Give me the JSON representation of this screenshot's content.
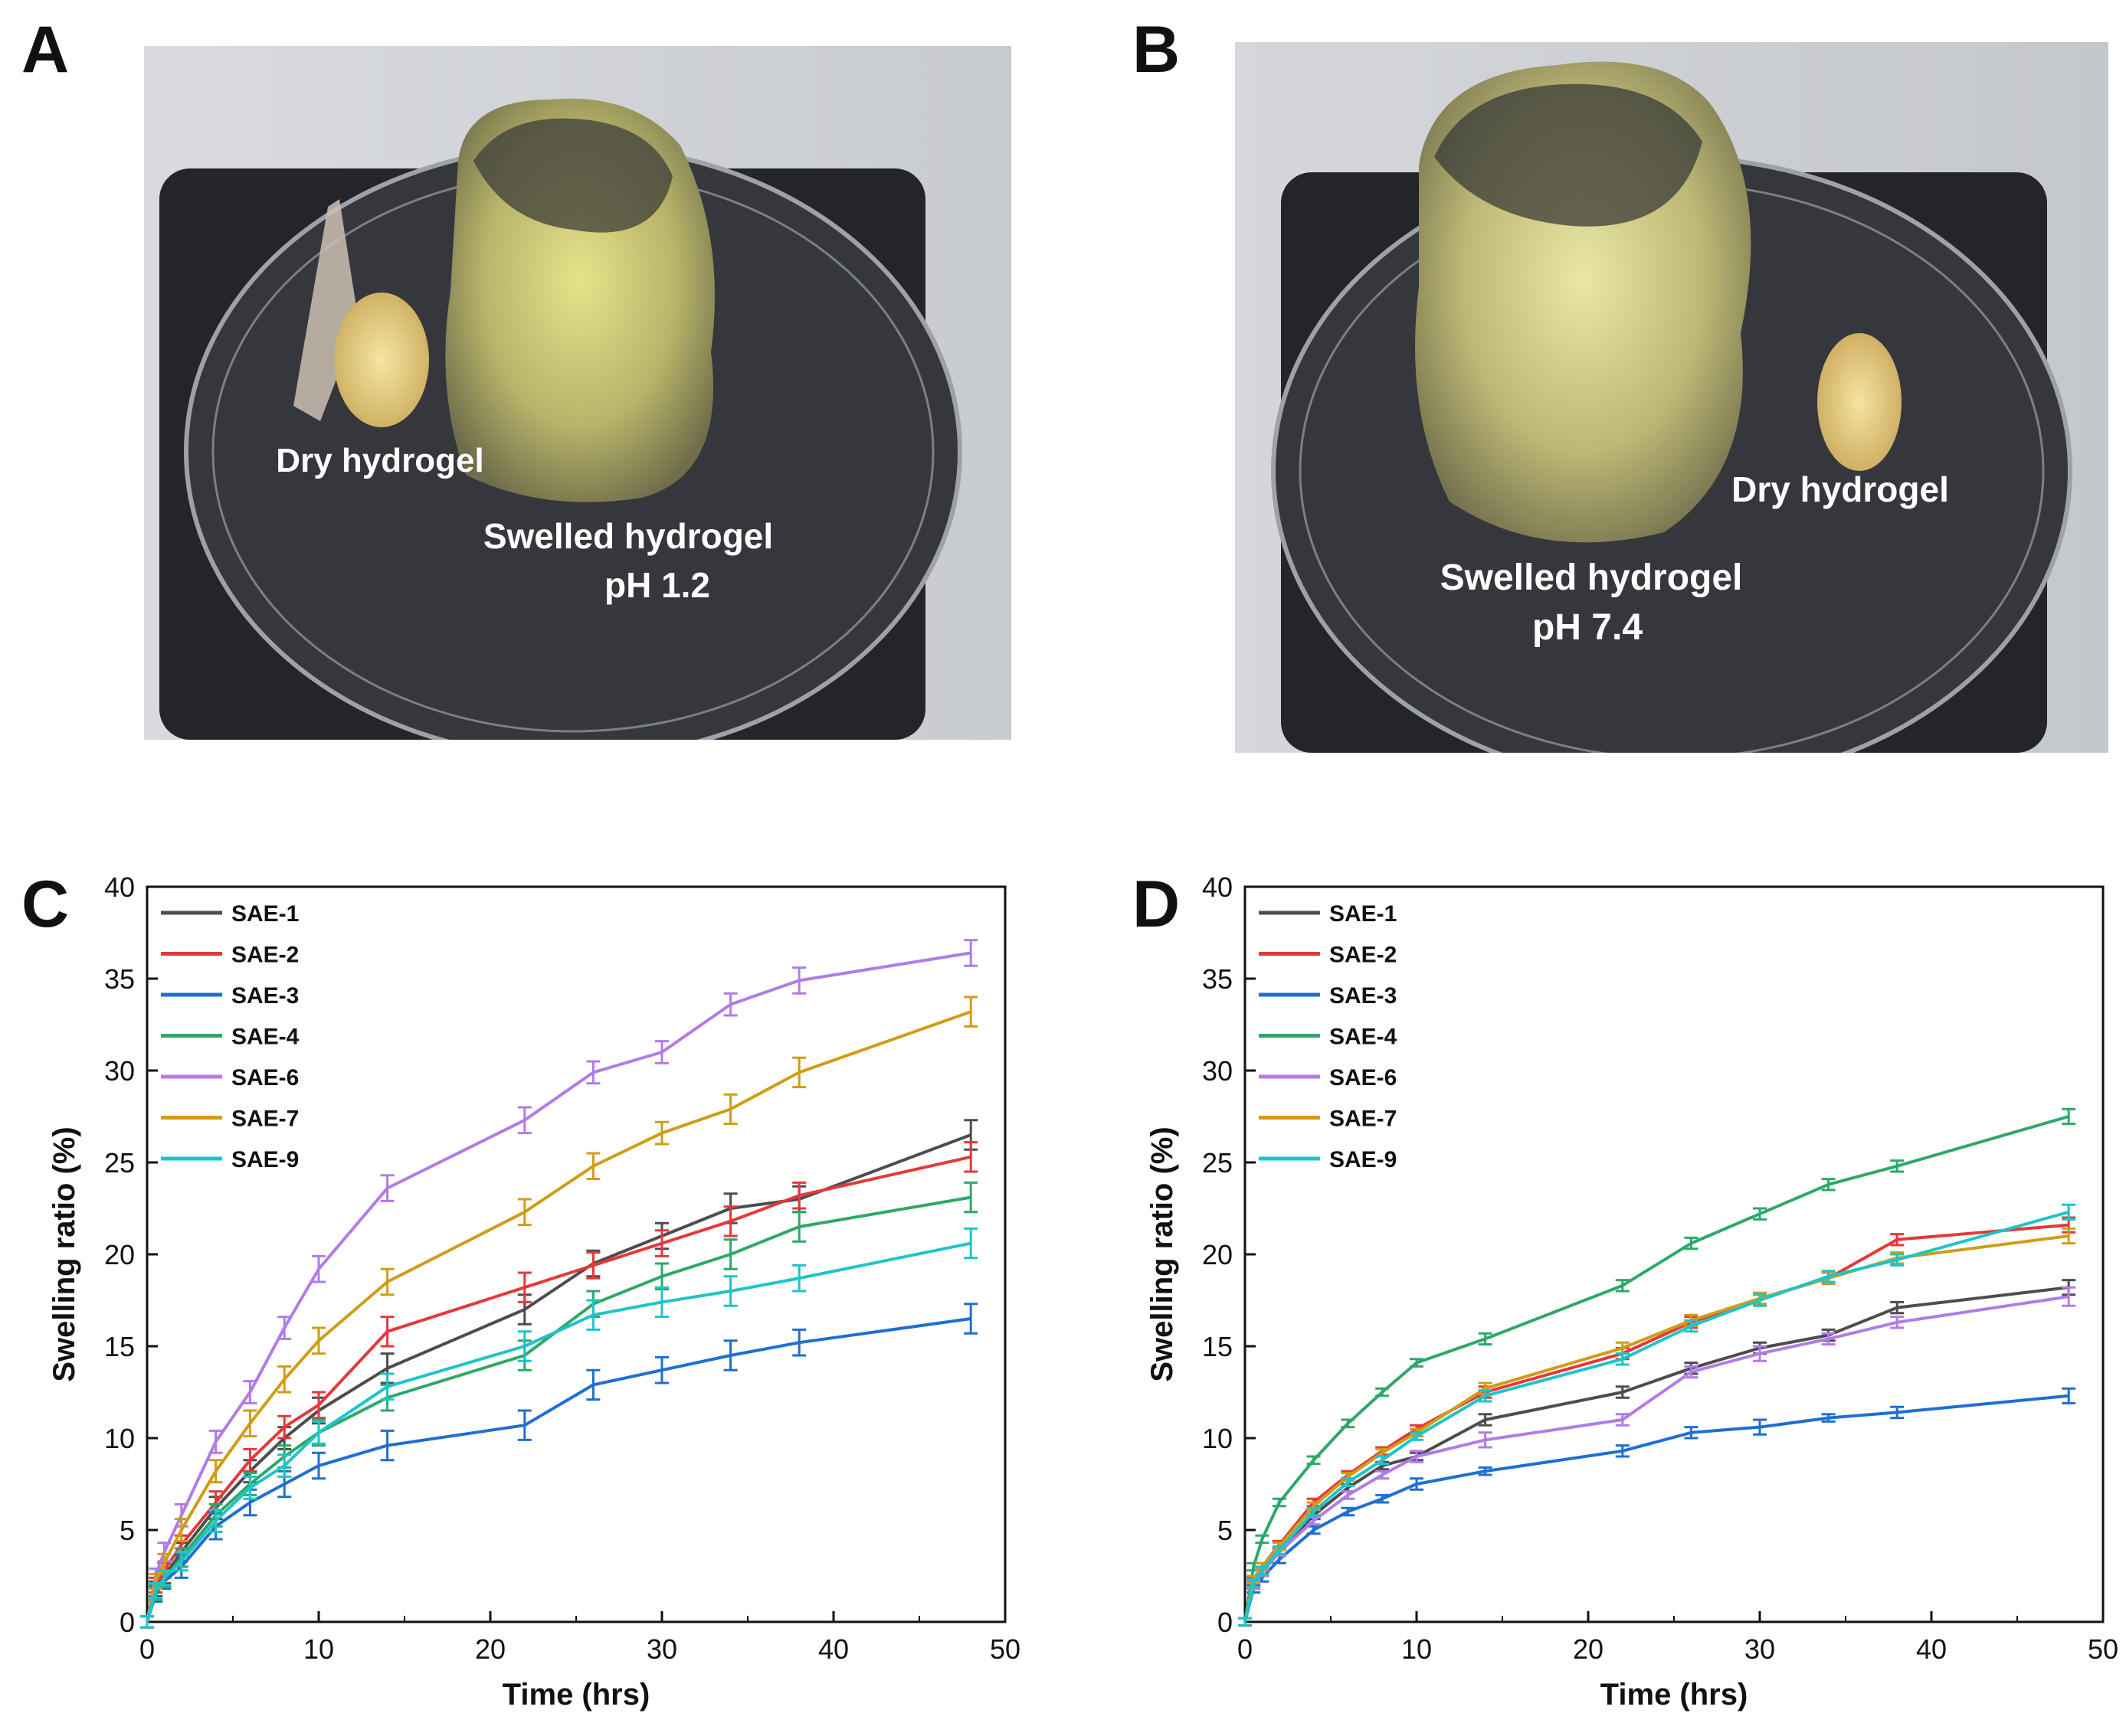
{
  "panels": {
    "A": {
      "letter": "A",
      "labels": {
        "dry": "Dry hydrogel",
        "swelled": "Swelled hydrogel",
        "ph": "pH 1.2"
      }
    },
    "B": {
      "letter": "B",
      "labels": {
        "dry": "Dry hydrogel",
        "swelled": "Swelled hydrogel",
        "ph": "pH 7.4"
      }
    },
    "C": {
      "letter": "C"
    },
    "D": {
      "letter": "D"
    }
  },
  "colors": {
    "SAE-1": "#4d4d4d",
    "SAE-2": "#e5383b",
    "SAE-3": "#1f6fd1",
    "SAE-4": "#2ea86a",
    "SAE-6": "#b07ce8",
    "SAE-7": "#cf9d16",
    "SAE-9": "#1ec4c8"
  },
  "chart_data": [
    {
      "panel": "C",
      "type": "line",
      "xlabel": "Time (hrs)",
      "ylabel": "Swelling ratio (%)",
      "xlim": [
        0,
        50
      ],
      "ylim": [
        0,
        40
      ],
      "xticks": [
        0,
        10,
        20,
        30,
        40,
        50
      ],
      "yticks": [
        0,
        5,
        10,
        15,
        20,
        25,
        30,
        35,
        40
      ],
      "legend_position": "top-left",
      "x": [
        0,
        0.5,
        1,
        2,
        4,
        6,
        8,
        10,
        14,
        22,
        26,
        30,
        34,
        38,
        48
      ],
      "series": [
        {
          "name": "SAE-1",
          "values": [
            0,
            1.8,
            2.5,
            3.8,
            6.2,
            8.2,
            10.0,
            11.5,
            13.8,
            17.0,
            19.5,
            21.0,
            22.5,
            23.0,
            26.5
          ],
          "errors": [
            0.3,
            0.4,
            0.4,
            0.5,
            0.6,
            0.6,
            0.6,
            0.7,
            0.8,
            0.8,
            0.7,
            0.7,
            0.8,
            0.7,
            0.8
          ]
        },
        {
          "name": "SAE-2",
          "values": [
            0,
            2.0,
            2.8,
            4.2,
            6.5,
            8.8,
            10.6,
            11.8,
            15.8,
            18.2,
            19.4,
            20.6,
            21.8,
            23.2,
            25.3
          ],
          "errors": [
            0.3,
            0.4,
            0.4,
            0.5,
            0.6,
            0.6,
            0.6,
            0.7,
            0.8,
            0.8,
            0.7,
            0.7,
            0.8,
            0.7,
            0.8
          ]
        },
        {
          "name": "SAE-3",
          "values": [
            0,
            1.5,
            2.2,
            3.0,
            5.2,
            6.5,
            7.5,
            8.5,
            9.6,
            10.7,
            12.9,
            13.7,
            14.5,
            15.2,
            16.5
          ],
          "errors": [
            0.3,
            0.4,
            0.4,
            0.6,
            0.7,
            0.7,
            0.7,
            0.7,
            0.8,
            0.8,
            0.8,
            0.7,
            0.8,
            0.7,
            0.8
          ]
        },
        {
          "name": "SAE-4",
          "values": [
            0,
            1.6,
            2.3,
            3.5,
            5.8,
            7.5,
            9.0,
            10.3,
            12.2,
            14.5,
            17.3,
            18.8,
            20.0,
            21.5,
            23.1
          ],
          "errors": [
            0.3,
            0.4,
            0.4,
            0.5,
            0.6,
            0.6,
            0.6,
            0.7,
            0.7,
            0.8,
            0.7,
            0.7,
            0.8,
            0.8,
            0.8
          ]
        },
        {
          "name": "SAE-6",
          "values": [
            0,
            2.5,
            3.8,
            5.8,
            9.8,
            12.5,
            16.0,
            19.2,
            23.6,
            27.3,
            29.9,
            31.0,
            33.6,
            34.9,
            36.4
          ],
          "errors": [
            0.3,
            0.4,
            0.5,
            0.6,
            0.6,
            0.6,
            0.6,
            0.7,
            0.7,
            0.7,
            0.6,
            0.6,
            0.6,
            0.7,
            0.7
          ]
        },
        {
          "name": "SAE-7",
          "values": [
            0,
            2.2,
            3.2,
            5.0,
            8.2,
            10.8,
            13.2,
            15.3,
            18.5,
            22.3,
            24.8,
            26.6,
            27.9,
            29.9,
            33.2
          ],
          "errors": [
            0.3,
            0.4,
            0.5,
            0.6,
            0.6,
            0.7,
            0.7,
            0.7,
            0.7,
            0.7,
            0.7,
            0.6,
            0.8,
            0.8,
            0.8
          ]
        },
        {
          "name": "SAE-9",
          "values": [
            0,
            1.7,
            2.4,
            3.3,
            5.5,
            7.3,
            8.5,
            10.3,
            12.8,
            15.0,
            16.7,
            17.4,
            18.0,
            18.7,
            20.6
          ],
          "errors": [
            0.3,
            0.4,
            0.4,
            0.5,
            0.6,
            0.6,
            0.6,
            0.6,
            0.7,
            0.8,
            0.8,
            0.8,
            0.8,
            0.7,
            0.8
          ]
        }
      ]
    },
    {
      "panel": "D",
      "type": "line",
      "xlabel": "Time (hrs)",
      "ylabel": "Swelling ratio (%)",
      "xlim": [
        0,
        50
      ],
      "ylim": [
        0,
        40
      ],
      "xticks": [
        0,
        10,
        20,
        30,
        40,
        50
      ],
      "yticks": [
        0,
        5,
        10,
        15,
        20,
        25,
        30,
        35,
        40
      ],
      "legend_position": "top-left",
      "x": [
        0,
        0.5,
        1,
        2,
        4,
        6,
        8,
        10,
        14,
        22,
        26,
        30,
        34,
        38,
        48
      ],
      "series": [
        {
          "name": "SAE-1",
          "values": [
            0,
            2.0,
            2.7,
            3.8,
            5.8,
            7.3,
            8.5,
            9.0,
            11.0,
            12.5,
            13.8,
            14.9,
            15.6,
            17.1,
            18.2
          ],
          "errors": [
            0.2,
            0.2,
            0.2,
            0.2,
            0.2,
            0.2,
            0.2,
            0.2,
            0.3,
            0.3,
            0.3,
            0.3,
            0.3,
            0.3,
            0.4
          ]
        },
        {
          "name": "SAE-2",
          "values": [
            0,
            2.2,
            3.0,
            4.2,
            6.5,
            8.0,
            9.3,
            10.5,
            12.5,
            14.6,
            16.3,
            17.6,
            18.7,
            20.8,
            21.6
          ],
          "errors": [
            0.2,
            0.2,
            0.2,
            0.2,
            0.2,
            0.2,
            0.2,
            0.2,
            0.3,
            0.3,
            0.3,
            0.3,
            0.3,
            0.3,
            0.4
          ]
        },
        {
          "name": "SAE-3",
          "values": [
            0,
            1.8,
            2.4,
            3.4,
            5.0,
            6.0,
            6.7,
            7.5,
            8.2,
            9.3,
            10.3,
            10.6,
            11.1,
            11.4,
            12.3
          ],
          "errors": [
            0.2,
            0.2,
            0.2,
            0.2,
            0.2,
            0.2,
            0.2,
            0.3,
            0.2,
            0.3,
            0.3,
            0.4,
            0.2,
            0.3,
            0.4
          ]
        },
        {
          "name": "SAE-4",
          "values": [
            0,
            3.0,
            4.5,
            6.5,
            8.8,
            10.8,
            12.5,
            14.1,
            15.4,
            18.3,
            20.6,
            22.2,
            23.8,
            24.8,
            27.5
          ],
          "errors": [
            0.2,
            0.2,
            0.2,
            0.2,
            0.2,
            0.2,
            0.2,
            0.2,
            0.3,
            0.3,
            0.3,
            0.3,
            0.3,
            0.3,
            0.4
          ]
        },
        {
          "name": "SAE-6",
          "values": [
            0,
            2.0,
            2.7,
            3.8,
            5.5,
            6.9,
            8.0,
            9.0,
            9.9,
            11.0,
            13.6,
            14.6,
            15.4,
            16.3,
            17.7
          ],
          "errors": [
            0.2,
            0.2,
            0.2,
            0.2,
            0.2,
            0.2,
            0.2,
            0.3,
            0.4,
            0.3,
            0.3,
            0.4,
            0.3,
            0.3,
            0.5
          ]
        },
        {
          "name": "SAE-7",
          "values": [
            0,
            2.3,
            3.0,
            4.1,
            6.3,
            7.9,
            9.2,
            10.3,
            12.7,
            14.9,
            16.4,
            17.6,
            18.7,
            19.8,
            21.0
          ],
          "errors": [
            0.2,
            0.2,
            0.2,
            0.2,
            0.2,
            0.2,
            0.2,
            0.2,
            0.3,
            0.3,
            0.3,
            0.3,
            0.3,
            0.3,
            0.4
          ]
        },
        {
          "name": "SAE-9",
          "values": [
            0,
            2.1,
            2.8,
            3.9,
            6.0,
            7.6,
            8.8,
            10.1,
            12.3,
            14.3,
            16.1,
            17.5,
            18.8,
            19.7,
            22.3
          ],
          "errors": [
            0.2,
            0.2,
            0.2,
            0.2,
            0.2,
            0.2,
            0.2,
            0.2,
            0.3,
            0.3,
            0.3,
            0.3,
            0.3,
            0.3,
            0.4
          ]
        }
      ]
    }
  ]
}
